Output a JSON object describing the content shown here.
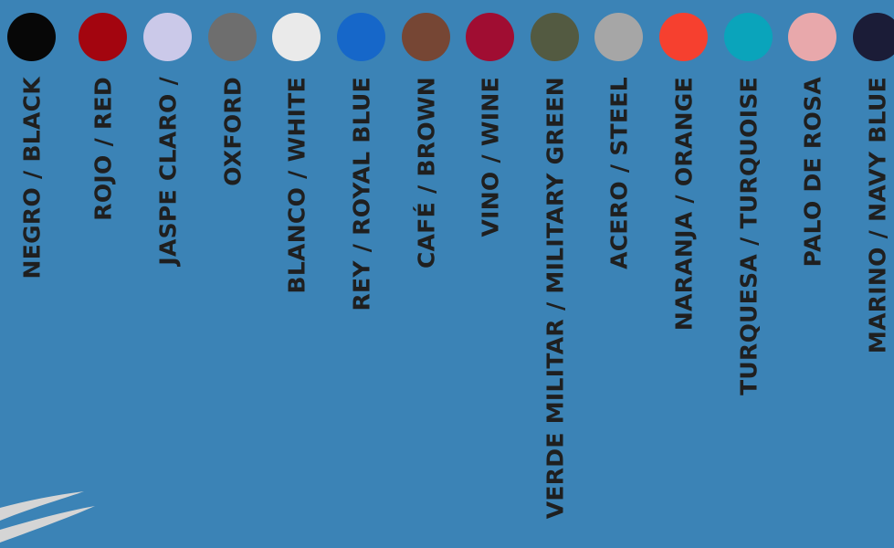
{
  "colors": [
    {
      "label": "NEGRO / BLACK",
      "hex": "#070707"
    },
    {
      "label": "ROJO / RED",
      "hex": "#a3050f"
    },
    {
      "label": "JASPE CLARO /",
      "hex": "#cbc9e9"
    },
    {
      "label": "OXFORD",
      "hex": "#6e6e6e"
    },
    {
      "label": "BLANCO / WHITE",
      "hex": "#eaeaea"
    },
    {
      "label": "REY / ROYAL BLUE",
      "hex": "#1667c9"
    },
    {
      "label": "CAFÉ / BROWN",
      "hex": "#764634"
    },
    {
      "label": "VINO / WINE",
      "hex": "#a00d32"
    },
    {
      "label": "VERDE MILITAR / MILITARY GREEN",
      "hex": "#535a41"
    },
    {
      "label": "ACERO / STEEL",
      "hex": "#a6a6a6"
    },
    {
      "label": "NARANJA / ORANGE",
      "hex": "#f6402f"
    },
    {
      "label": "TURQUESA / TURQUOISE",
      "hex": "#0aa4bb"
    },
    {
      "label": "PALO DE ROSA",
      "hex": "#e8a8ab"
    },
    {
      "label": "MARINO / NAVY BLUE",
      "hex": "#1b1c37"
    }
  ]
}
